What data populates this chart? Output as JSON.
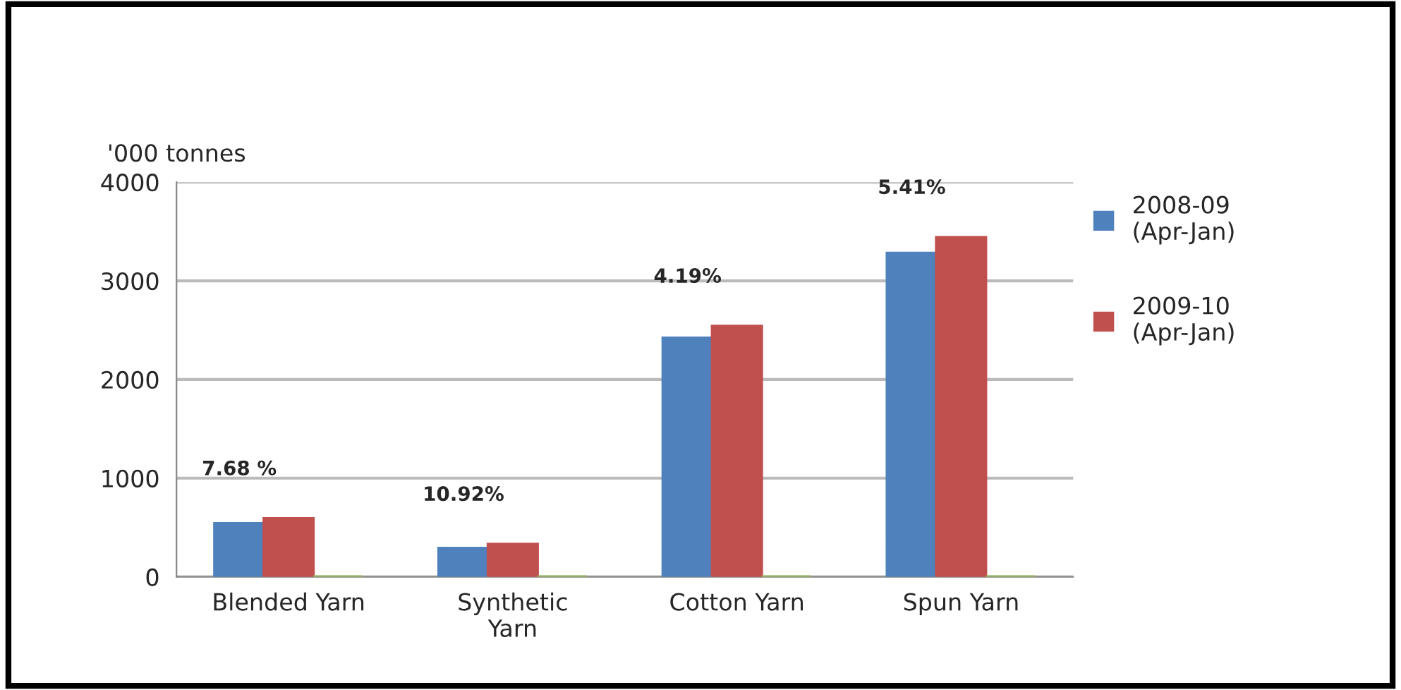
{
  "chart_data": {
    "type": "bar",
    "ylabel": "'000 tonnes",
    "categories": [
      "Blended Yarn",
      "Synthetic\nYarn",
      "Cotton Yarn",
      "Spun Yarn"
    ],
    "series": [
      {
        "name": "2008-09\n(Apr-Jan)",
        "color": "#4f81bd",
        "values": [
          540,
          290,
          2420,
          3280
        ]
      },
      {
        "name": "2009-10\n(Apr-Jan)",
        "color": "#c0504d",
        "values": [
          590,
          330,
          2540,
          3440
        ]
      },
      {
        "color": "#9bbb59",
        "values": [
          0,
          0,
          0,
          0
        ]
      }
    ],
    "annotations": [
      "7.68 %",
      "10.92%",
      "4.19%",
      "5.41%"
    ],
    "ylim": [
      0,
      4000
    ],
    "yticks": [
      0,
      1000,
      2000,
      3000,
      4000
    ],
    "grid": "y",
    "legend": "right"
  }
}
